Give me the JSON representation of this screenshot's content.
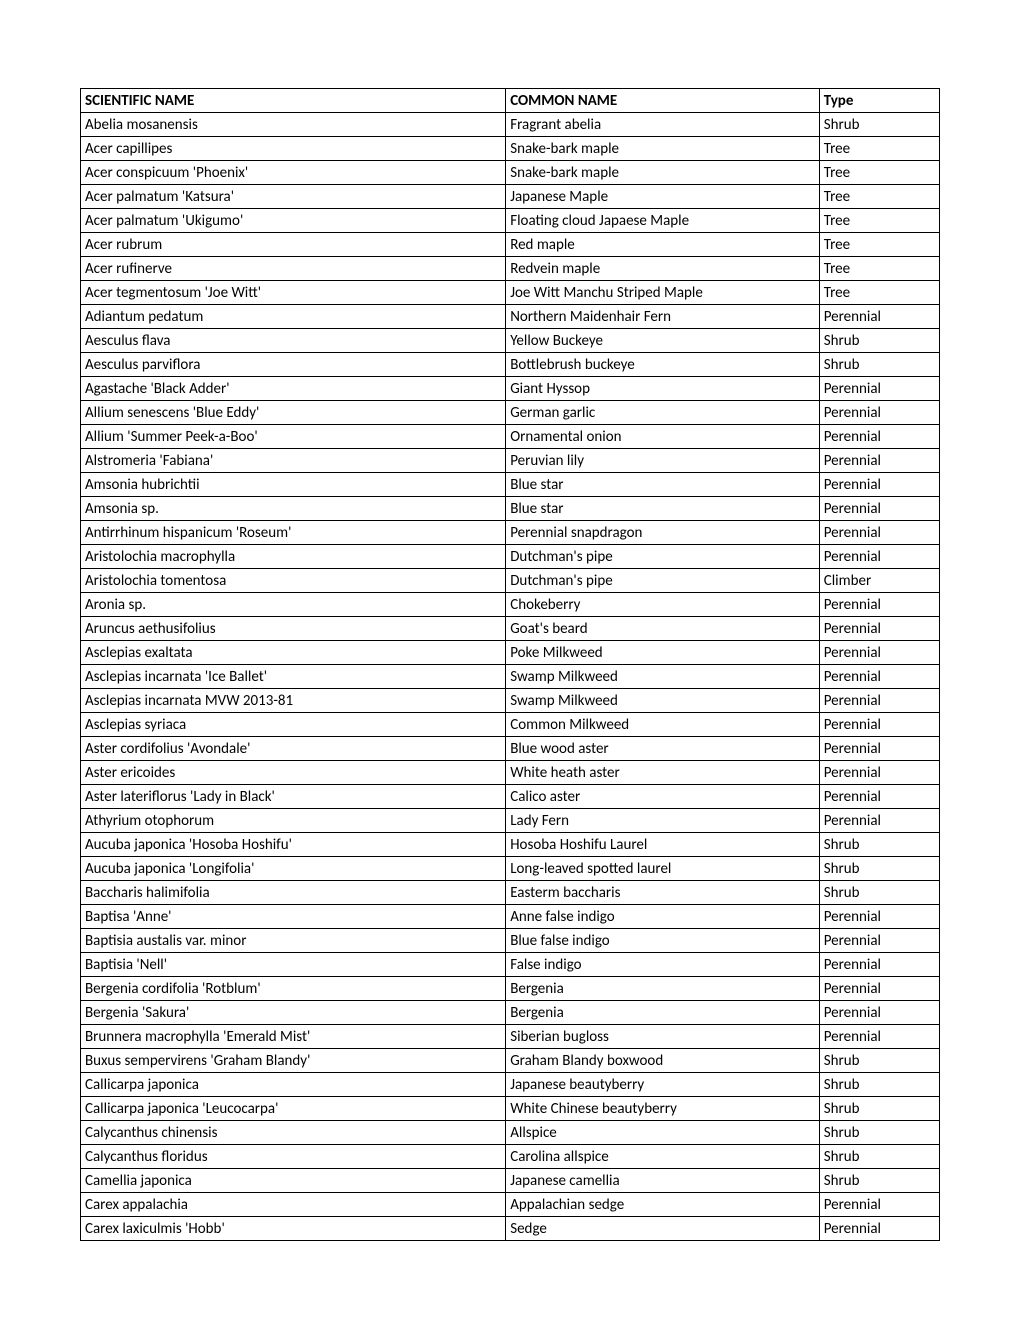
{
  "table": {
    "columns": [
      "SCIENTIFIC NAME",
      "COMMON NAME",
      "Type"
    ],
    "rows": [
      [
        "Abelia mosanensis",
        "Fragrant abelia",
        "Shrub"
      ],
      [
        "Acer capillipes",
        "Snake-bark maple",
        "Tree"
      ],
      [
        "Acer conspicuum 'Phoenix'",
        "Snake-bark maple",
        "Tree"
      ],
      [
        "Acer palmatum 'Katsura'",
        "Japanese Maple",
        "Tree"
      ],
      [
        "Acer palmatum 'Ukigumo'",
        "Floating cloud Japaese Maple",
        "Tree"
      ],
      [
        "Acer rubrum",
        "Red maple",
        "Tree"
      ],
      [
        "Acer rufinerve",
        "Redvein maple",
        "Tree"
      ],
      [
        "Acer tegmentosum 'Joe Witt'",
        "Joe Witt Manchu Striped Maple",
        "Tree"
      ],
      [
        "Adiantum pedatum",
        "Northern Maidenhair Fern",
        "Perennial"
      ],
      [
        "Aesculus flava",
        "Yellow Buckeye",
        "Shrub"
      ],
      [
        "Aesculus parviflora",
        "Bottlebrush buckeye",
        "Shrub"
      ],
      [
        "Agastache 'Black Adder'",
        "Giant Hyssop",
        "Perennial"
      ],
      [
        "Allium senescens 'Blue Eddy'",
        "German garlic",
        "Perennial"
      ],
      [
        "Allium 'Summer Peek-a-Boo'",
        "Ornamental onion",
        "Perennial"
      ],
      [
        "Alstromeria 'Fabiana'",
        "Peruvian lily",
        "Perennial"
      ],
      [
        "Amsonia hubrichtii",
        "Blue star",
        "Perennial"
      ],
      [
        "Amsonia sp.",
        "Blue star",
        "Perennial"
      ],
      [
        "Antirrhinum hispanicum 'Roseum'",
        "Perennial snapdragon",
        "Perennial"
      ],
      [
        "Aristolochia macrophylla",
        "Dutchman's pipe",
        "Perennial"
      ],
      [
        "Aristolochia tomentosa",
        "Dutchman's pipe",
        "Climber"
      ],
      [
        "Aronia sp.",
        "Chokeberry",
        "Perennial"
      ],
      [
        "Aruncus aethusifolius",
        "Goat's beard",
        "Perennial"
      ],
      [
        "Asclepias exaltata",
        "Poke Milkweed",
        "Perennial"
      ],
      [
        "Asclepias incarnata 'Ice Ballet'",
        "Swamp Milkweed",
        "Perennial"
      ],
      [
        "Asclepias incarnata MVW 2013-81",
        "Swamp Milkweed",
        "Perennial"
      ],
      [
        "Asclepias syriaca",
        "Common Milkweed",
        "Perennial"
      ],
      [
        "Aster cordifolius 'Avondale'",
        "Blue wood aster",
        "Perennial"
      ],
      [
        "Aster ericoides",
        "White heath aster",
        "Perennial"
      ],
      [
        "Aster lateriflorus 'Lady in Black'",
        "Calico aster",
        "Perennial"
      ],
      [
        "Athyrium otophorum",
        "Lady Fern",
        "Perennial"
      ],
      [
        "Aucuba japonica 'Hosoba Hoshifu'",
        "Hosoba Hoshifu Laurel",
        "Shrub"
      ],
      [
        "Aucuba japonica 'Longifolia'",
        "Long-leaved spotted laurel",
        "Shrub"
      ],
      [
        "Baccharis halimifolia",
        "Easterm baccharis",
        "Shrub"
      ],
      [
        "Baptisa 'Anne'",
        "Anne false indigo",
        "Perennial"
      ],
      [
        "Baptisia austalis var. minor",
        "Blue false indigo",
        "Perennial"
      ],
      [
        "Baptisia 'Nell'",
        "False indigo",
        "Perennial"
      ],
      [
        "Bergenia cordifolia 'Rotblum'",
        "Bergenia",
        "Perennial"
      ],
      [
        "Bergenia 'Sakura'",
        "Bergenia",
        "Perennial"
      ],
      [
        "Brunnera macrophylla 'Emerald Mist'",
        "Siberian bugloss",
        "Perennial"
      ],
      [
        "Buxus sempervirens 'Graham Blandy'",
        "Graham Blandy boxwood",
        "Shrub"
      ],
      [
        "Callicarpa japonica",
        "Japanese beautyberry",
        "Shrub"
      ],
      [
        "Callicarpa japonica 'Leucocarpa'",
        "White Chinese beautyberry",
        "Shrub"
      ],
      [
        "Calycanthus chinensis",
        "Allspice",
        "Shrub"
      ],
      [
        "Calycanthus floridus",
        "Carolina allspice",
        "Shrub"
      ],
      [
        "Camellia japonica",
        "Japanese camellia",
        "Shrub"
      ],
      [
        "Carex appalachia",
        "Appalachian sedge",
        "Perennial"
      ],
      [
        "Carex laxiculmis 'Hobb'",
        "Sedge",
        "Perennial"
      ]
    ]
  }
}
